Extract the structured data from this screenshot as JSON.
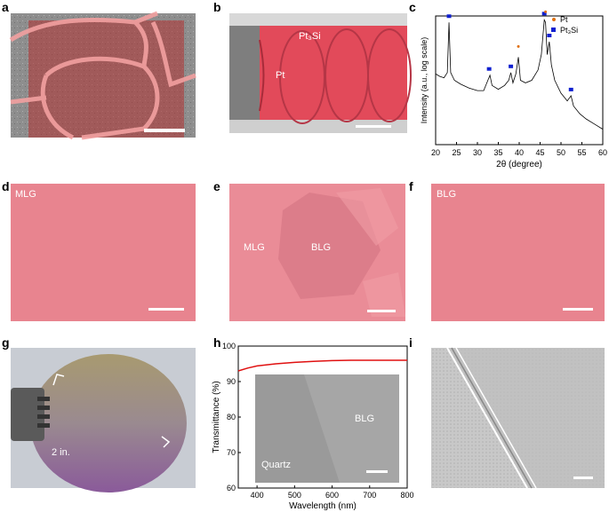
{
  "panel_letters": {
    "a": "a",
    "b": "b",
    "c": "c",
    "d": "d",
    "e": "e",
    "f": "f",
    "g": "g",
    "h": "h",
    "i": "i"
  },
  "panel_b": {
    "label_pt3si": "Pt₃Si",
    "label_pt": "Pt"
  },
  "panel_d": {
    "label": "MLG"
  },
  "panel_e": {
    "label_mlg": "MLG",
    "label_blg": "BLG"
  },
  "panel_f": {
    "label": "BLG"
  },
  "panel_g": {
    "label": "2 in."
  },
  "panel_h_inset": {
    "label_blg": "BLG",
    "label_quartz": "Quartz"
  },
  "colors": {
    "pink": "#e8848f",
    "red": "#e01010",
    "blue": "#1020d0",
    "orange": "#e07010"
  },
  "chart_data": [
    {
      "type": "line",
      "panel": "c",
      "xlabel": "2θ (degree)",
      "ylabel": "Intensity (a.u., log scale)",
      "xlim": [
        20,
        60
      ],
      "xticks": [
        "20",
        "25",
        "30",
        "35",
        "40",
        "45",
        "50",
        "55",
        "60"
      ],
      "legend": [
        {
          "name": "Pt",
          "marker": "circle",
          "color": "#e07010"
        },
        {
          "name": "Pt₃Si",
          "marker": "square",
          "color": "#1020d0"
        }
      ],
      "legend_placement": "top-right",
      "peaks_pt3si": [
        23.2,
        32.8,
        38.0,
        46.0,
        47.2,
        52.4
      ],
      "peaks_pt": [
        39.8,
        46.3
      ],
      "x": [
        20,
        21,
        22,
        22.8,
        23.2,
        23.6,
        24.5,
        26,
        28,
        30,
        31.5,
        32.5,
        33,
        33.5,
        35,
        36.5,
        37.5,
        38,
        38.5,
        39.2,
        39.8,
        40.3,
        41.5,
        43,
        44.5,
        45.3,
        46,
        46.3,
        46.7,
        47.2,
        47.7,
        48.5,
        50,
        51.5,
        52.4,
        53,
        54.5,
        56,
        58,
        60
      ],
      "y": [
        0.55,
        0.53,
        0.52,
        0.56,
        0.95,
        0.56,
        0.5,
        0.47,
        0.44,
        0.42,
        0.42,
        0.5,
        0.54,
        0.46,
        0.43,
        0.46,
        0.5,
        0.56,
        0.48,
        0.55,
        0.68,
        0.5,
        0.48,
        0.5,
        0.58,
        0.7,
        0.97,
        0.95,
        0.7,
        0.8,
        0.62,
        0.5,
        0.4,
        0.34,
        0.38,
        0.3,
        0.24,
        0.2,
        0.16,
        0.12
      ]
    },
    {
      "type": "line",
      "panel": "h",
      "xlabel": "Wavelength (nm)",
      "ylabel": "Transmittance (%)",
      "xlim": [
        350,
        800
      ],
      "ylim": [
        60,
        100
      ],
      "xticks": [
        "400",
        "500",
        "600",
        "700",
        "800"
      ],
      "yticks": [
        "60",
        "70",
        "80",
        "90",
        "100"
      ],
      "x": [
        350,
        375,
        400,
        450,
        500,
        550,
        600,
        650,
        700,
        750,
        800
      ],
      "y": [
        93.0,
        93.8,
        94.4,
        95.0,
        95.4,
        95.7,
        95.9,
        96.0,
        96.0,
        96.0,
        96.0
      ]
    }
  ]
}
